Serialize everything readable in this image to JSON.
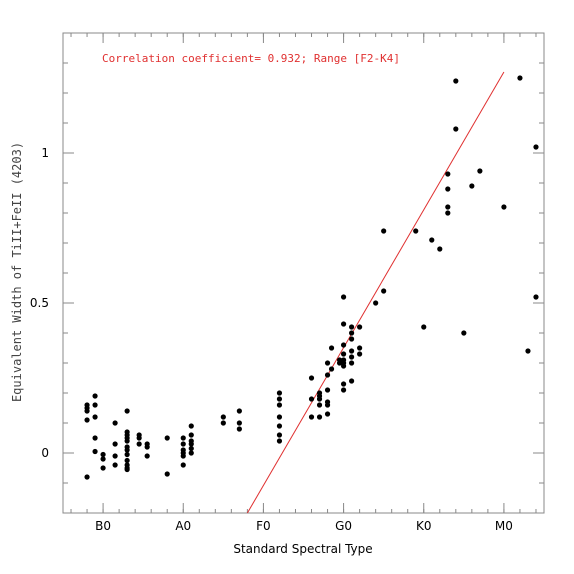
{
  "chart_data": {
    "type": "scatter",
    "xlabel": "Standard Spectral Type",
    "ylabel": "Equivalent Width of TiII+FeII (4203)",
    "annotation": "Correlation coefficient= 0.932; Range [F2-K4]",
    "x_ticks": [
      {
        "value": 0,
        "label": "B0"
      },
      {
        "value": 10,
        "label": "A0"
      },
      {
        "value": 20,
        "label": "F0"
      },
      {
        "value": 30,
        "label": "G0"
      },
      {
        "value": 40,
        "label": "K0"
      },
      {
        "value": 50,
        "label": "M0"
      }
    ],
    "y_ticks": [
      {
        "value": 0,
        "label": "0"
      },
      {
        "value": 0.5,
        "label": "0.5"
      },
      {
        "value": 1,
        "label": "1"
      }
    ],
    "xlim": [
      -5,
      55
    ],
    "ylim": [
      -0.2,
      1.4
    ],
    "fit_line": {
      "x": [
        18,
        50
      ],
      "y": [
        -0.2,
        1.27
      ],
      "color": "#e03030"
    },
    "point_color": "#000000",
    "points": [
      [
        -2,
        -0.08
      ],
      [
        -2,
        0.11
      ],
      [
        -2,
        0.14
      ],
      [
        -2,
        0.15
      ],
      [
        -2,
        0.16
      ],
      [
        -1,
        0.05
      ],
      [
        -1,
        0.12
      ],
      [
        -1,
        0.16
      ],
      [
        -1,
        0.19
      ],
      [
        -1,
        0.005
      ],
      [
        0,
        -0.005
      ],
      [
        0,
        -0.02
      ],
      [
        0,
        -0.05
      ],
      [
        1.5,
        0.1
      ],
      [
        1.5,
        0.03
      ],
      [
        1.5,
        -0.01
      ],
      [
        1.5,
        -0.04
      ],
      [
        3,
        0.14
      ],
      [
        3,
        0.07
      ],
      [
        3,
        0.06
      ],
      [
        3,
        0.05
      ],
      [
        3,
        0.04
      ],
      [
        3,
        0.02
      ],
      [
        3,
        0.01
      ],
      [
        3,
        -0.005
      ],
      [
        3,
        -0.025
      ],
      [
        3,
        -0.04
      ],
      [
        3,
        -0.05
      ],
      [
        3,
        -0.055
      ],
      [
        4.5,
        0.06
      ],
      [
        4.5,
        0.05
      ],
      [
        4.5,
        0.03
      ],
      [
        5.5,
        0.03
      ],
      [
        5.5,
        0.02
      ],
      [
        5.5,
        -0.01
      ],
      [
        8,
        0.05
      ],
      [
        8,
        -0.07
      ],
      [
        10,
        0.05
      ],
      [
        10,
        0.03
      ],
      [
        10,
        0.01
      ],
      [
        10,
        0.0
      ],
      [
        10,
        -0.01
      ],
      [
        10,
        -0.04
      ],
      [
        11,
        0.09
      ],
      [
        11,
        0.06
      ],
      [
        11,
        0.04
      ],
      [
        11,
        0.03
      ],
      [
        11,
        0.015
      ],
      [
        11,
        0.0
      ],
      [
        15,
        0.12
      ],
      [
        15,
        0.1
      ],
      [
        17,
        0.14
      ],
      [
        17,
        0.1
      ],
      [
        17,
        0.08
      ],
      [
        22,
        0.2
      ],
      [
        22,
        0.18
      ],
      [
        22,
        0.16
      ],
      [
        22,
        0.12
      ],
      [
        22,
        0.09
      ],
      [
        22,
        0.06
      ],
      [
        22,
        0.04
      ],
      [
        26,
        0.25
      ],
      [
        26,
        0.18
      ],
      [
        26,
        0.12
      ],
      [
        27,
        0.2
      ],
      [
        27,
        0.19
      ],
      [
        27,
        0.18
      ],
      [
        27,
        0.16
      ],
      [
        27,
        0.12
      ],
      [
        28,
        0.3
      ],
      [
        28,
        0.26
      ],
      [
        28,
        0.21
      ],
      [
        28,
        0.17
      ],
      [
        28,
        0.16
      ],
      [
        28,
        0.13
      ],
      [
        28.5,
        0.35
      ],
      [
        28.5,
        0.28
      ],
      [
        29.5,
        0.31
      ],
      [
        29.5,
        0.3
      ],
      [
        30,
        0.52
      ],
      [
        30,
        0.43
      ],
      [
        30,
        0.36
      ],
      [
        30,
        0.33
      ],
      [
        30,
        0.31
      ],
      [
        30,
        0.3
      ],
      [
        30,
        0.29
      ],
      [
        30,
        0.23
      ],
      [
        30,
        0.21
      ],
      [
        31,
        0.42
      ],
      [
        31,
        0.4
      ],
      [
        31,
        0.38
      ],
      [
        31,
        0.34
      ],
      [
        31,
        0.32
      ],
      [
        31,
        0.3
      ],
      [
        31,
        0.24
      ],
      [
        32,
        0.42
      ],
      [
        32,
        0.35
      ],
      [
        32,
        0.33
      ],
      [
        34,
        0.5
      ],
      [
        35,
        0.74
      ],
      [
        35,
        0.54
      ],
      [
        39,
        0.74
      ],
      [
        40,
        0.42
      ],
      [
        41,
        0.71
      ],
      [
        42,
        0.68
      ],
      [
        43,
        0.93
      ],
      [
        43,
        0.88
      ],
      [
        43,
        0.82
      ],
      [
        43,
        0.8
      ],
      [
        44,
        1.24
      ],
      [
        44,
        1.08
      ],
      [
        45,
        0.4
      ],
      [
        46,
        0.89
      ],
      [
        47,
        0.94
      ],
      [
        50,
        0.82
      ],
      [
        52,
        1.25
      ],
      [
        53,
        0.34
      ],
      [
        54,
        1.02
      ],
      [
        54,
        0.52
      ]
    ]
  }
}
